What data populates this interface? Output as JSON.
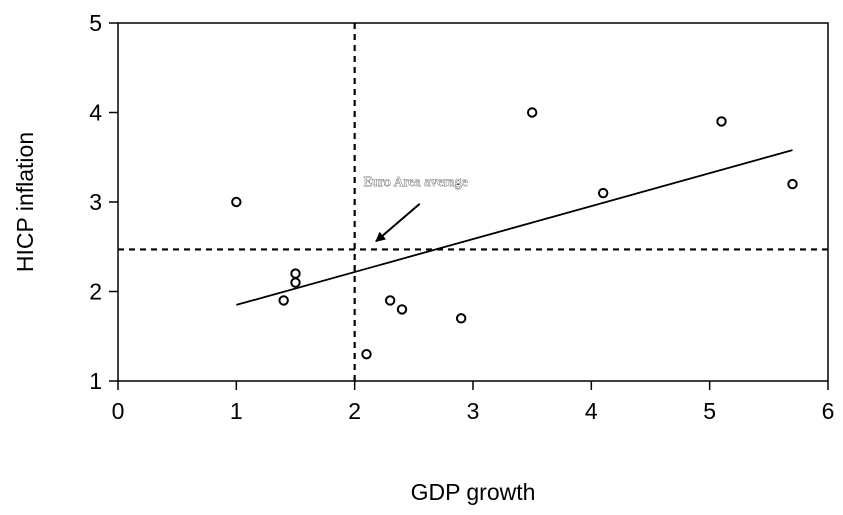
{
  "chart_data": {
    "type": "scatter",
    "title": "",
    "xlabel": "GDP growth",
    "ylabel": "HICP inflation",
    "xlim": [
      0,
      6
    ],
    "ylim": [
      1,
      5
    ],
    "xticks": [
      "0",
      "1",
      "2",
      "3",
      "4",
      "5",
      "6"
    ],
    "yticks": [
      "1",
      "2",
      "3",
      "4",
      "5"
    ],
    "grid": false,
    "points": [
      {
        "x": 1.0,
        "y": 3.0
      },
      {
        "x": 1.4,
        "y": 1.9
      },
      {
        "x": 1.5,
        "y": 2.2
      },
      {
        "x": 1.5,
        "y": 2.1
      },
      {
        "x": 2.1,
        "y": 1.3
      },
      {
        "x": 2.3,
        "y": 1.9
      },
      {
        "x": 2.4,
        "y": 1.8
      },
      {
        "x": 2.9,
        "y": 1.7
      },
      {
        "x": 3.5,
        "y": 4.0
      },
      {
        "x": 4.1,
        "y": 3.1
      },
      {
        "x": 5.1,
        "y": 3.9
      },
      {
        "x": 5.7,
        "y": 3.2
      }
    ],
    "trend_line": {
      "x": [
        1.0,
        5.7
      ],
      "y": [
        1.85,
        3.58
      ]
    },
    "reference_lines": {
      "x": 2.0,
      "y": 2.47
    },
    "annotation": {
      "text": "Euro Area average",
      "text_position": {
        "x": 2.6,
        "y": 3.18
      },
      "arrow_from": {
        "x": 2.55,
        "y": 2.98
      },
      "arrow_to": {
        "x": 2.18,
        "y": 2.56
      }
    }
  }
}
